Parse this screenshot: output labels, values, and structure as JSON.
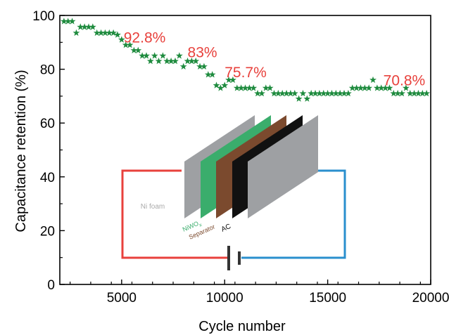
{
  "chart_data": {
    "type": "scatter",
    "title": "",
    "xlabel": "Cycle number",
    "ylabel": "Capacitance retention (%)",
    "xlim": [
      2000,
      20000
    ],
    "ylim": [
      0,
      100
    ],
    "xticks": [
      5000,
      10000,
      15000,
      20000
    ],
    "yticks": [
      0,
      20,
      40,
      60,
      80,
      100
    ],
    "marker": "star",
    "color": "#1e8b3e",
    "grid": false,
    "series": [
      {
        "x": [
          2200,
          2400,
          2600,
          2800,
          3000,
          3200,
          3400,
          3600,
          3800,
          4000,
          4200,
          4400,
          4600,
          4800,
          5000,
          5200,
          5400,
          5600,
          5800,
          6000,
          6200,
          6400,
          6600,
          6800,
          7000,
          7200,
          7400,
          7600,
          7800,
          8000,
          8200,
          8400,
          8600,
          8800,
          9000,
          9200,
          9400,
          9600,
          9800,
          10000,
          10200,
          10400,
          10600,
          10800,
          11000,
          11200,
          11400,
          11600,
          11800,
          12000,
          12200,
          12400,
          12600,
          12800,
          13000,
          13200,
          13400,
          13600,
          13800,
          14000,
          14200,
          14400,
          14600,
          14800,
          15000,
          15200,
          15400,
          15600,
          15800,
          16000,
          16200,
          16400,
          16600,
          16800,
          17000,
          17200,
          17400,
          17600,
          17800,
          18000,
          18200,
          18400,
          18600,
          18800,
          19000,
          19200,
          19400,
          19600,
          19800
        ],
        "y": [
          97.8,
          97.8,
          97.8,
          93.5,
          95.7,
          95.7,
          95.7,
          95.7,
          93.5,
          93.5,
          93.5,
          93.5,
          93.5,
          92.8,
          91,
          89,
          89,
          87,
          87,
          85,
          85,
          83,
          85,
          83,
          85,
          83,
          83,
          83,
          85,
          81,
          83,
          83,
          83,
          81,
          81,
          78,
          78,
          74,
          73,
          74,
          76,
          76,
          73,
          73,
          73,
          73,
          73,
          71,
          71,
          73,
          73,
          71,
          71,
          71,
          71,
          71,
          71,
          69,
          71,
          69,
          71,
          71,
          71,
          71,
          71,
          71,
          71,
          71,
          71,
          71,
          73,
          73,
          73,
          73,
          73,
          76,
          73,
          73,
          73,
          73,
          71,
          71,
          71,
          73,
          71,
          71,
          71,
          71,
          71
        ]
      }
    ],
    "annotations": [
      {
        "text": "92.8%",
        "x": 5100,
        "y": 90
      },
      {
        "text": "83%",
        "x": 8200,
        "y": 84.5
      },
      {
        "text": "75.7%",
        "x": 10000,
        "y": 77
      },
      {
        "text": "70.8%",
        "x": 17700,
        "y": 74
      }
    ]
  },
  "inset": {
    "left_label": "Ni foam",
    "right_label": "Ni foam",
    "niwo_main": "NiWO",
    "niwo_sub": "x",
    "separator_label": "Separator",
    "ac_label": "AC",
    "colors": {
      "nifoam": "#9ea0a3",
      "niwo": "#3aad6c",
      "separator": "#7b4a2e",
      "ac": "#111111",
      "wire_left": "#e8413c",
      "wire_right": "#2a8fce"
    }
  }
}
